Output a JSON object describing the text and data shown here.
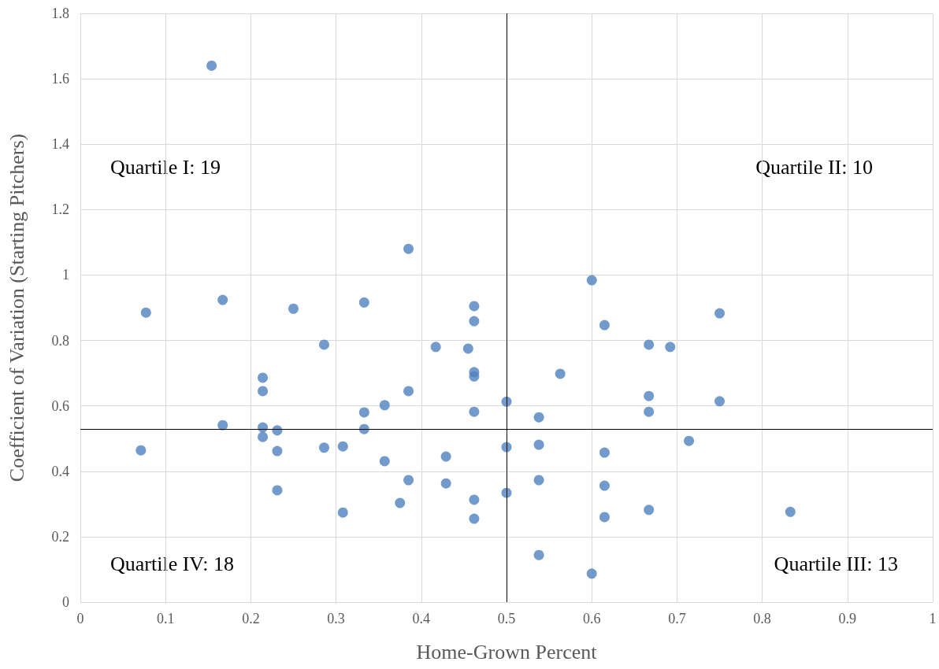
{
  "chart_data": {
    "type": "scatter",
    "xlabel": "Home-Grown Percent",
    "ylabel": "Coefficient of Variation (Starting Pitchers)",
    "x": [
      0.154,
      0.077,
      0.167,
      0.25,
      0.333,
      0.385,
      0.462,
      0.462,
      0.286,
      0.417,
      0.455,
      0.462,
      0.462,
      0.214,
      0.214,
      0.385,
      0.357,
      0.333,
      0.462,
      0.167,
      0.214,
      0.231,
      0.333,
      0.5,
      0.6,
      0.615,
      0.75,
      0.667,
      0.692,
      0.563,
      0.667,
      0.667,
      0.75,
      0.538,
      0.071,
      0.214,
      0.231,
      0.286,
      0.308,
      0.357,
      0.231,
      0.308,
      0.385,
      0.375,
      0.429,
      0.429,
      0.462,
      0.462,
      0.5,
      0.5,
      0.538,
      0.538,
      0.538,
      0.615,
      0.615,
      0.615,
      0.667,
      0.714,
      0.833,
      0.6
    ],
    "series": [
      {
        "color": "#4f81bd",
        "values": [
          1.64,
          0.885,
          0.924,
          0.897,
          0.916,
          1.08,
          0.905,
          0.859,
          0.787,
          0.78,
          0.775,
          0.703,
          0.69,
          0.686,
          0.645,
          0.645,
          0.602,
          0.58,
          0.582,
          0.541,
          0.534,
          0.525,
          0.529,
          0.613,
          0.984,
          0.847,
          0.883,
          0.787,
          0.78,
          0.698,
          0.63,
          0.582,
          0.614,
          0.565,
          0.464,
          0.505,
          0.462,
          0.472,
          0.476,
          0.431,
          0.342,
          0.274,
          0.373,
          0.303,
          0.445,
          0.363,
          0.313,
          0.255,
          0.474,
          0.334,
          0.481,
          0.373,
          0.144,
          0.457,
          0.356,
          0.26,
          0.282,
          0.493,
          0.276,
          0.087
        ]
      }
    ],
    "xlim": [
      0,
      1
    ],
    "xticks": [
      0,
      0.1,
      0.2,
      0.3,
      0.4,
      0.5,
      0.6,
      0.7,
      0.8,
      0.9,
      1
    ],
    "ylim": [
      0,
      1.8
    ],
    "yticks": [
      0,
      0.2,
      0.4,
      0.6,
      0.8,
      1,
      1.2,
      1.4,
      1.6,
      1.8
    ],
    "grid": true,
    "marker": "circle",
    "ref_lines": [
      {
        "axis": "x",
        "value": 0.5,
        "color": "#000000"
      },
      {
        "axis": "y",
        "value": 0.532,
        "color": "#000000"
      }
    ],
    "annotations": [
      "Quartile I: 19",
      "Quartile II: 10",
      "Quartile IV: 18",
      "Quartile III: 13"
    ]
  }
}
